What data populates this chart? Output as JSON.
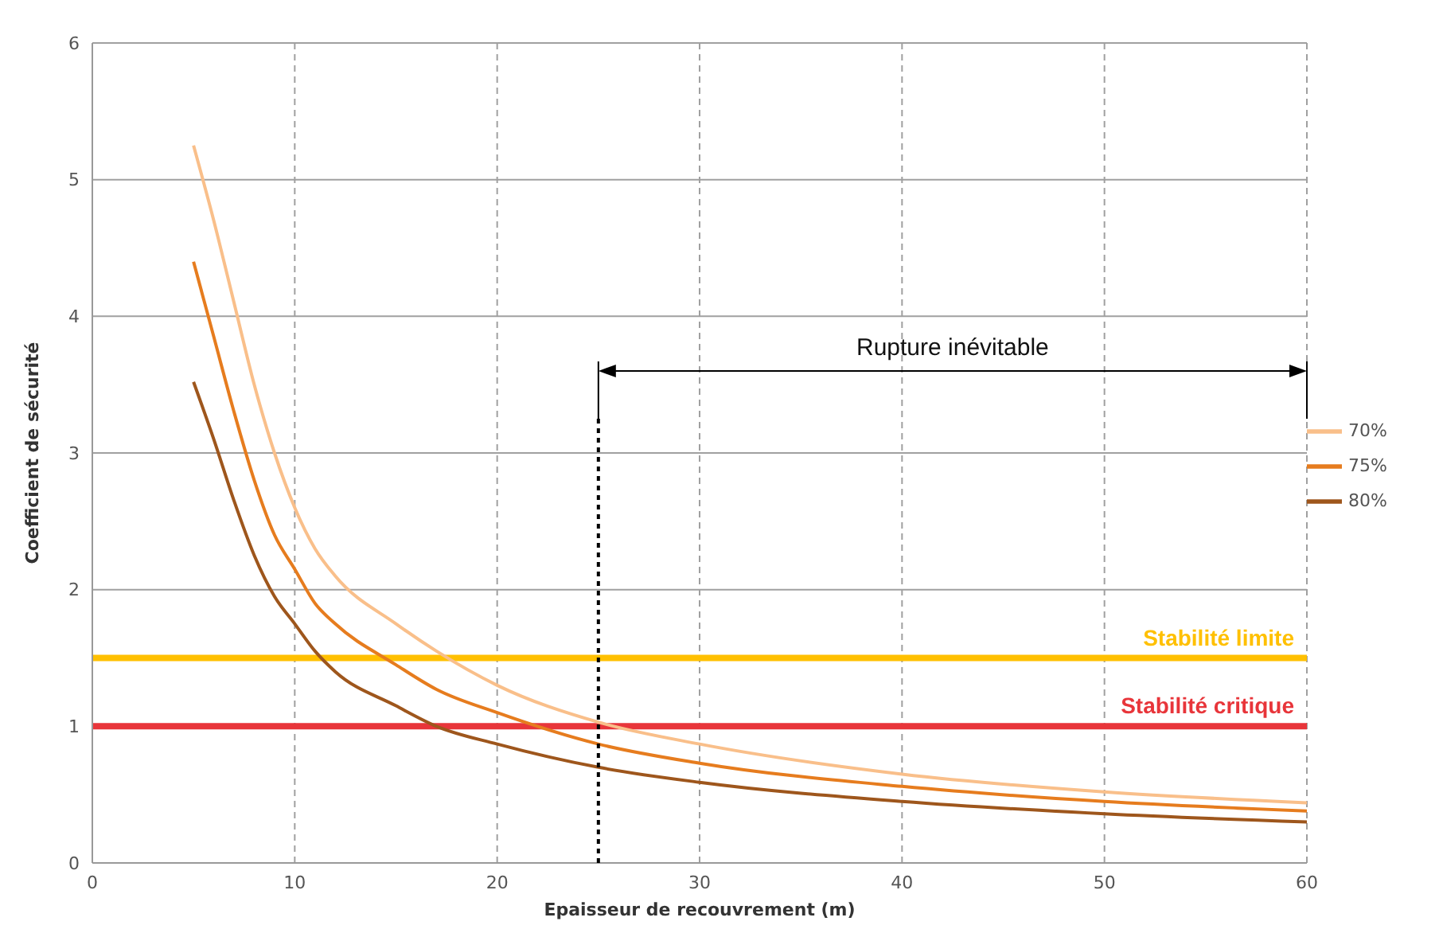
{
  "chart_data": {
    "type": "line",
    "xlabel": "Epaisseur de recouvrement (m)",
    "ylabel": "Coefficient de sécurité",
    "x": [
      5,
      6,
      7,
      8,
      9,
      10,
      11,
      12,
      15,
      17,
      20,
      25,
      30,
      40,
      50,
      60
    ],
    "series": [
      {
        "name": "70%",
        "color": "#f9bf8a",
        "values": [
          5.25,
          4.7,
          4.1,
          3.5,
          3.0,
          2.6,
          2.3,
          2.1,
          1.75,
          1.55,
          1.3,
          1.03,
          0.87,
          0.65,
          0.52,
          0.44
        ]
      },
      {
        "name": "75%",
        "color": "#e67c1e",
        "values": [
          4.4,
          3.85,
          3.3,
          2.8,
          2.4,
          2.15,
          1.9,
          1.75,
          1.45,
          1.27,
          1.1,
          0.87,
          0.73,
          0.56,
          0.45,
          0.38
        ]
      },
      {
        "name": "80%",
        "color": "#9e561c",
        "values": [
          3.52,
          3.1,
          2.65,
          2.25,
          1.95,
          1.75,
          1.55,
          1.4,
          1.15,
          1.0,
          0.87,
          0.7,
          0.59,
          0.45,
          0.36,
          0.3
        ]
      }
    ],
    "xlim": [
      0,
      60
    ],
    "xticks": [
      0,
      10,
      20,
      30,
      40,
      50,
      60
    ],
    "ylim": [
      0,
      6
    ],
    "yticks": [
      0,
      1,
      2,
      3,
      4,
      5,
      6
    ],
    "ref_lines": [
      {
        "axis": "y",
        "value": 1.5,
        "label": "Stabilité limite",
        "color": "#ffc000"
      },
      {
        "axis": "y",
        "value": 1,
        "label": "Stabilité critique",
        "color": "#e8353a"
      },
      {
        "axis": "x",
        "value": 25,
        "label": null,
        "color": "#000000",
        "line_style": "dotted"
      }
    ],
    "annotations": [
      "Rupture inévitable"
    ],
    "grid": true,
    "legend": "right",
    "marker": "none",
    "line_style": "solid"
  }
}
